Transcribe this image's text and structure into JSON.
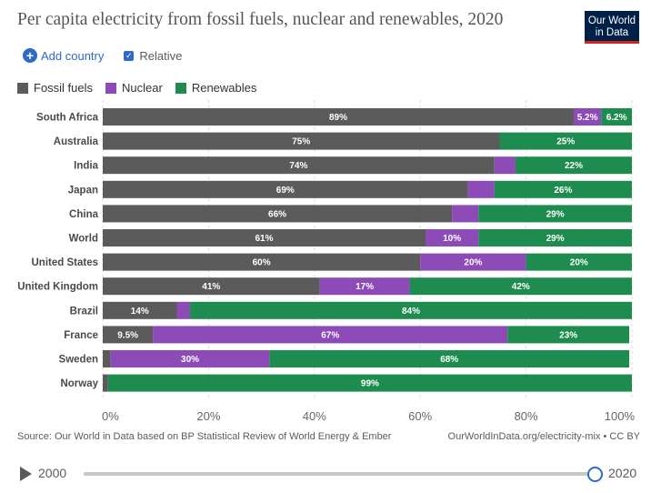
{
  "header": {
    "title": "Per capita electricity from fossil fuels, nuclear and renewables, 2020",
    "logo_line1": "Our World",
    "logo_line2": "in Data"
  },
  "controls": {
    "add_country_label": "Add country",
    "relative_label": "Relative",
    "relative_checked": true
  },
  "colors": {
    "fossil": "#5b5b5b",
    "nuclear": "#8c4bb6",
    "renewables": "#1e8b4f",
    "accent": "#2f6ac6"
  },
  "chart_data": {
    "type": "bar",
    "orientation": "horizontal",
    "stacked": true,
    "categories": [
      "South Africa",
      "Australia",
      "India",
      "Japan",
      "China",
      "World",
      "United States",
      "United Kingdom",
      "Brazil",
      "France",
      "Sweden",
      "Norway"
    ],
    "series": [
      {
        "name": "Fossil fuels",
        "values": [
          89,
          75,
          74,
          69,
          66,
          61,
          60,
          41,
          14,
          9.5,
          1.5,
          1
        ],
        "labels": [
          "89%",
          "75%",
          "74%",
          "69%",
          "66%",
          "61%",
          "60%",
          "41%",
          "14%",
          "9.5%",
          "",
          ""
        ]
      },
      {
        "name": "Nuclear",
        "values": [
          5.2,
          0,
          4,
          5,
          5,
          10,
          20,
          17,
          2.5,
          67,
          30,
          0
        ],
        "labels": [
          "5.2%",
          "",
          "",
          "",
          "",
          "10%",
          "20%",
          "17%",
          "",
          "67%",
          "30%",
          ""
        ]
      },
      {
        "name": "Renewables",
        "values": [
          6.2,
          25,
          22,
          26,
          29,
          29,
          20,
          42,
          84,
          23,
          68,
          99
        ],
        "labels": [
          "6.2%",
          "25%",
          "22%",
          "26%",
          "29%",
          "29%",
          "20%",
          "42%",
          "84%",
          "23%",
          "68%",
          "99%"
        ]
      }
    ],
    "xlim": [
      0,
      100
    ],
    "xticks": [
      "0%",
      "20%",
      "40%",
      "60%",
      "80%",
      "100%"
    ],
    "grid": true,
    "legend_position": "top-left"
  },
  "footer": {
    "source": "Source: Our World in Data based on BP Statistical Review of World Energy & Ember",
    "url": "OurWorldInData.org/electricity-mix • CC BY"
  },
  "timeline": {
    "start": "2000",
    "end": "2020",
    "position": 1.0
  }
}
